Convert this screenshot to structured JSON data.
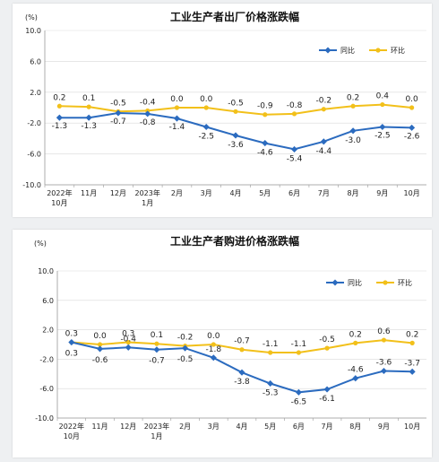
{
  "colors": {
    "yoy": "#2b6bbf",
    "mom": "#f2c01a",
    "grid": "#d9d9d9",
    "axis": "#999999"
  },
  "chart_data": [
    {
      "type": "line",
      "title": "工业生产者出厂价格涨跌幅",
      "ylabel": "(%)",
      "ylim": [
        -10.0,
        10.0
      ],
      "yticks": [
        "10.0",
        "6.0",
        "2.0",
        "-2.0",
        "-6.0",
        "-10.0"
      ],
      "categories": [
        [
          "2022年",
          "10月"
        ],
        [
          "11月"
        ],
        [
          "12月"
        ],
        [
          "2023年",
          "1月"
        ],
        [
          "2月"
        ],
        [
          "3月"
        ],
        [
          "4月"
        ],
        [
          "5月"
        ],
        [
          "6月"
        ],
        [
          "7月"
        ],
        [
          "8月"
        ],
        [
          "9月"
        ],
        [
          "10月"
        ]
      ],
      "series": [
        {
          "name": "同比",
          "values": [
            -1.3,
            -1.3,
            -0.7,
            -0.8,
            -1.4,
            -2.5,
            -3.6,
            -4.6,
            -5.4,
            -4.4,
            -3.0,
            -2.5,
            -2.6
          ],
          "labels": [
            "-1.3",
            "-1.3",
            "-0.7",
            "-0.8",
            "-1.4",
            "-2.5",
            "-3.6",
            "-4.6",
            "-5.4",
            "-4.4",
            "-3.0",
            "-2.5",
            "-2.6"
          ]
        },
        {
          "name": "环比",
          "values": [
            0.2,
            0.1,
            -0.5,
            -0.4,
            0.0,
            0.0,
            -0.5,
            -0.9,
            -0.8,
            -0.2,
            0.2,
            0.4,
            0.0
          ],
          "labels": [
            "0.2",
            "0.1",
            "-0.5",
            "-0.4",
            "0.0",
            "0.0",
            "-0.5",
            "-0.9",
            "-0.8",
            "-0.2",
            "0.2",
            "0.4",
            "0.0"
          ]
        }
      ],
      "legend_position": "top-right"
    },
    {
      "type": "line",
      "title": "工业生产者购进价格涨跌幅",
      "ylabel": "(%)",
      "ylim": [
        -10.0,
        10.0
      ],
      "yticks": [
        "10.0",
        "6.0",
        "2.0",
        "-2.0",
        "-6.0",
        "-10.0"
      ],
      "categories": [
        [
          "2022年",
          "10月"
        ],
        [
          "11月"
        ],
        [
          "12月"
        ],
        [
          "2023年",
          "1月"
        ],
        [
          "2月"
        ],
        [
          "3月"
        ],
        [
          "4月"
        ],
        [
          "5月"
        ],
        [
          "6月"
        ],
        [
          "7月"
        ],
        [
          "8月"
        ],
        [
          "9月"
        ],
        [
          "10月"
        ]
      ],
      "series": [
        {
          "name": "同比",
          "values": [
            0.3,
            -0.6,
            -0.4,
            -0.7,
            -0.5,
            -1.8,
            -3.8,
            -5.3,
            -6.5,
            -6.1,
            -4.6,
            -3.6,
            -3.7
          ],
          "labels": [
            "0.3",
            "-0.6",
            "-0.4",
            "-0.7",
            "-0.5",
            "-1.8",
            "-3.8",
            "-5.3",
            "-6.5",
            "-6.1",
            "-4.6",
            "-3.6",
            "-3.7"
          ]
        },
        {
          "name": "环比",
          "values": [
            0.3,
            0.0,
            0.3,
            0.1,
            -0.2,
            0.0,
            -0.7,
            -1.1,
            -1.1,
            -0.5,
            0.2,
            0.6,
            0.2
          ],
          "labels": [
            "0.3",
            "0.0",
            "0.3",
            "0.1",
            "-0.2",
            "0.0",
            "-0.7",
            "-1.1",
            "-1.1",
            "-0.5",
            "0.2",
            "0.6",
            "0.2"
          ]
        }
      ],
      "legend_position": "top-right"
    }
  ]
}
